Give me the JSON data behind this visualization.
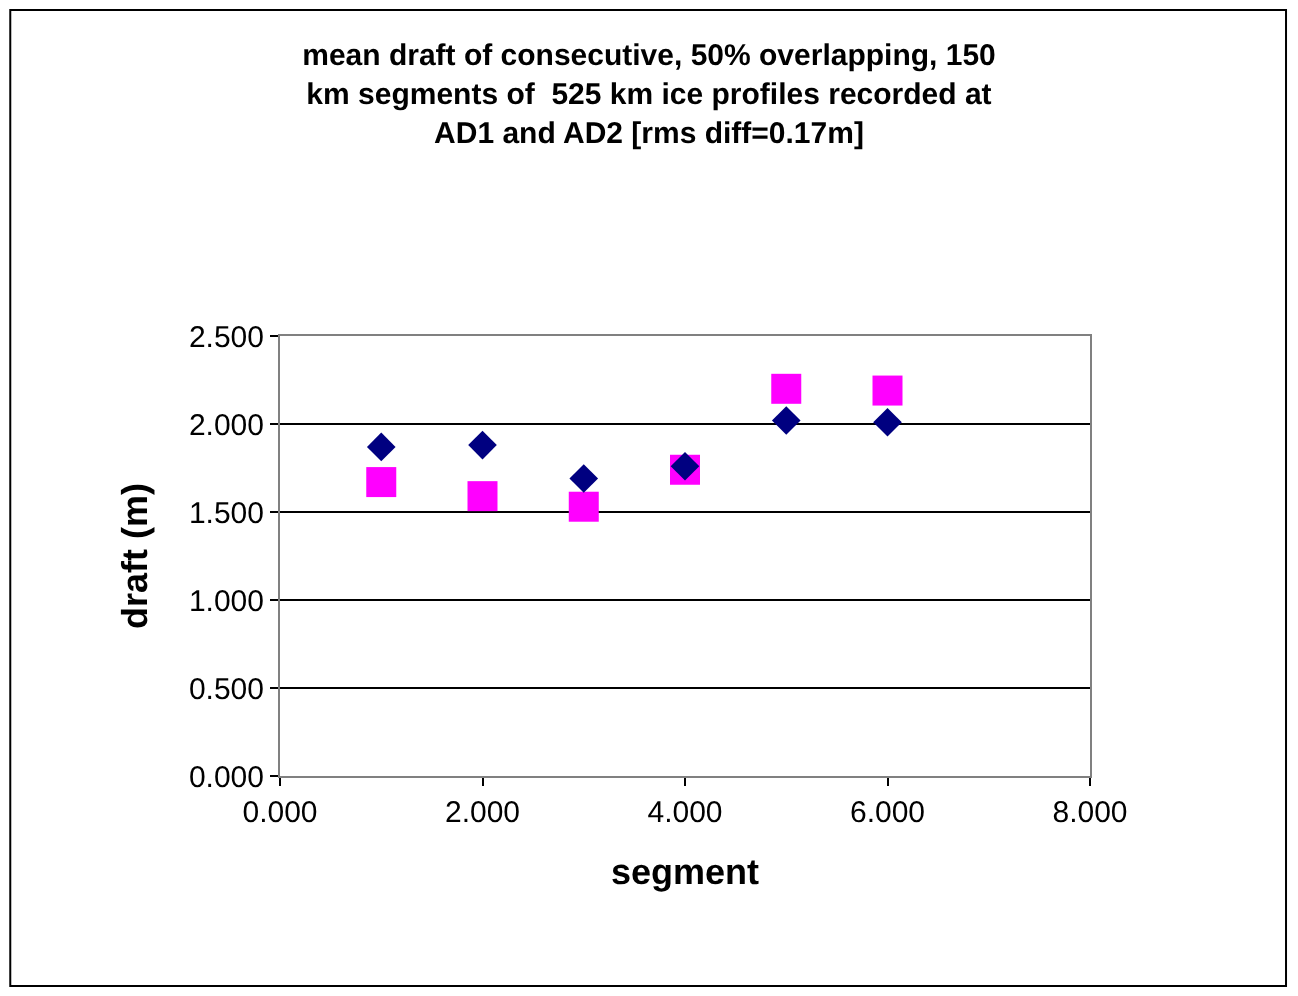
{
  "chart_data": {
    "type": "scatter",
    "title": "mean draft of consecutive, 50% overlapping, 150 km segments of  525 km ice profiles recorded at AD1 and AD2 [rms diff=0.17m]",
    "xlabel": "segment",
    "ylabel": "draft (m)",
    "x": [
      1,
      2,
      3,
      4,
      5,
      6
    ],
    "series": [
      {
        "color": "#ff00ff",
        "marker": "square",
        "values": [
          1.67,
          1.59,
          1.53,
          1.74,
          2.2,
          2.19
        ]
      },
      {
        "color": "#000080",
        "marker": "diamond",
        "values": [
          1.87,
          1.88,
          1.69,
          1.76,
          2.02,
          2.01
        ]
      }
    ],
    "xlim": [
      0,
      8
    ],
    "xticks": [
      {
        "value": 0,
        "label": "0.000"
      },
      {
        "value": 2,
        "label": "2.000"
      },
      {
        "value": 4,
        "label": "4.000"
      },
      {
        "value": 6,
        "label": "6.000"
      },
      {
        "value": 8,
        "label": "8.000"
      }
    ],
    "ylim": [
      0,
      2.5
    ],
    "yticks": [
      {
        "value": 0,
        "label": "0.000"
      },
      {
        "value": 0.5,
        "label": "0.500"
      },
      {
        "value": 1,
        "label": "1.000"
      },
      {
        "value": 1.5,
        "label": "1.500"
      },
      {
        "value": 2,
        "label": "2.000"
      },
      {
        "value": 2.5,
        "label": "2.500"
      }
    ],
    "grid": "y"
  }
}
